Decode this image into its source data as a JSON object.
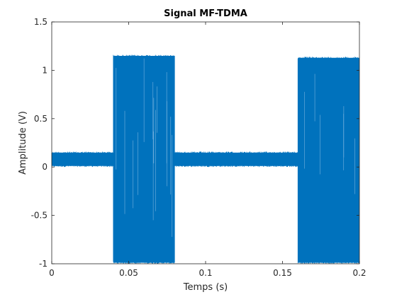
{
  "chart_data": {
    "type": "line",
    "title": "Signal MF-TDMA",
    "xlabel": "Temps (s)",
    "ylabel": "Amplitude (V)",
    "xlim": [
      0,
      0.2
    ],
    "ylim": [
      -1,
      1.5
    ],
    "x_ticks": [
      0,
      0.05,
      0.1,
      0.15,
      0.2
    ],
    "x_tick_labels": [
      "0",
      "0.05",
      "0.1",
      "0.15",
      "0.2"
    ],
    "y_ticks": [
      -1,
      -0.5,
      0,
      0.5,
      1,
      1.5
    ],
    "y_tick_labels": [
      "-1",
      "-0.5",
      "0",
      "0.5",
      "1",
      "1.5"
    ],
    "grid": false,
    "series_color": "#0072BD",
    "segments": [
      {
        "x_start": 0,
        "x_end": 0.04,
        "y_min": 0,
        "y_max": 0.16
      },
      {
        "x_start": 0.04,
        "x_end": 0.08,
        "y_min": -1,
        "y_max": 1.16
      },
      {
        "x_start": 0.08,
        "x_end": 0.16,
        "y_min": 0,
        "y_max": 0.16
      },
      {
        "x_start": 0.16,
        "x_end": 0.2,
        "y_min": -1,
        "y_max": 1.14
      }
    ]
  }
}
